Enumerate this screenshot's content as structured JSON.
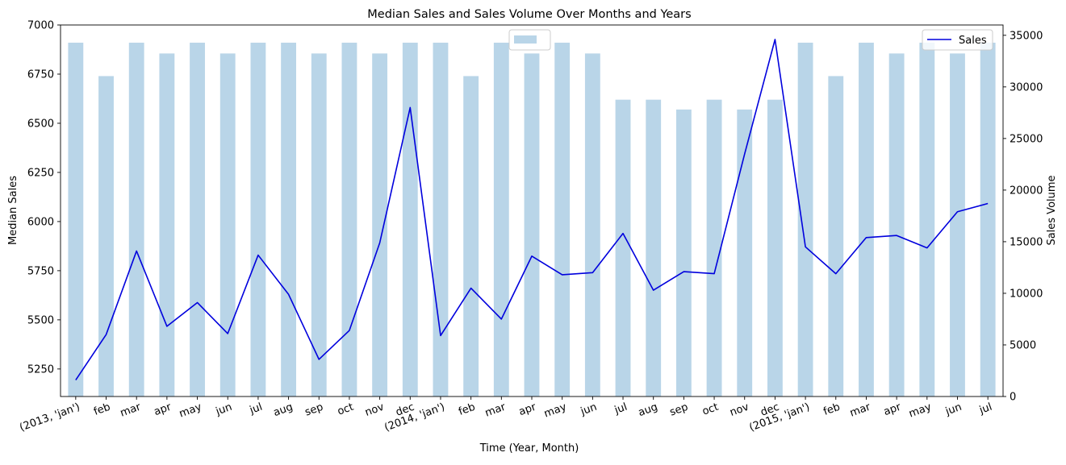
{
  "chart_data": {
    "type": "bar+line",
    "title": "Median Sales and Sales Volume Over Months and Years",
    "xlabel": "Time (Year, Month)",
    "ylabel_left": "Median Sales",
    "ylabel_right": "Sales Volume",
    "categories": [
      "(2013, 'jan')",
      "feb",
      "mar",
      "apr",
      "may",
      "jun",
      "jul",
      "aug",
      "sep",
      "oct",
      "nov",
      "dec",
      "(2014, 'jan')",
      "feb",
      "mar",
      "apr",
      "may",
      "jun",
      "jul",
      "aug",
      "sep",
      "oct",
      "nov",
      "dec",
      "(2015, 'jan')",
      "feb",
      "mar",
      "apr",
      "may",
      "jun",
      "jul"
    ],
    "left_axis": {
      "ylim": [
        5110,
        7000
      ],
      "ticks": [
        5250,
        5500,
        5750,
        6000,
        6250,
        6500,
        6750,
        7000
      ]
    },
    "right_axis": {
      "ylim": [
        0,
        36000
      ],
      "ticks": [
        0,
        5000,
        10000,
        15000,
        20000,
        25000,
        30000,
        35000
      ]
    },
    "bars": {
      "name": "",
      "axis": "left",
      "color": "#b9d5e8",
      "values": [
        6910,
        6740,
        6910,
        6855,
        6910,
        6855,
        6910,
        6910,
        6855,
        6910,
        6855,
        6910,
        6910,
        6740,
        6910,
        6855,
        6910,
        6855,
        6620,
        6620,
        6570,
        6620,
        6570,
        6620,
        6910,
        6740,
        6910,
        6855,
        6910,
        6855,
        6910
      ]
    },
    "line": {
      "name": "Sales",
      "axis": "right",
      "color": "#0000dd",
      "values": [
        1600,
        6000,
        14100,
        6800,
        9100,
        6100,
        13700,
        9900,
        3600,
        6400,
        14900,
        28000,
        5900,
        10500,
        7500,
        13600,
        11800,
        12000,
        15800,
        10300,
        12100,
        11900,
        23500,
        34600,
        14500,
        11900,
        15400,
        15600,
        14400,
        17900,
        18700
      ]
    },
    "legend": {
      "bar_position": "top-center",
      "line_position": "top-right"
    },
    "grid": false
  }
}
